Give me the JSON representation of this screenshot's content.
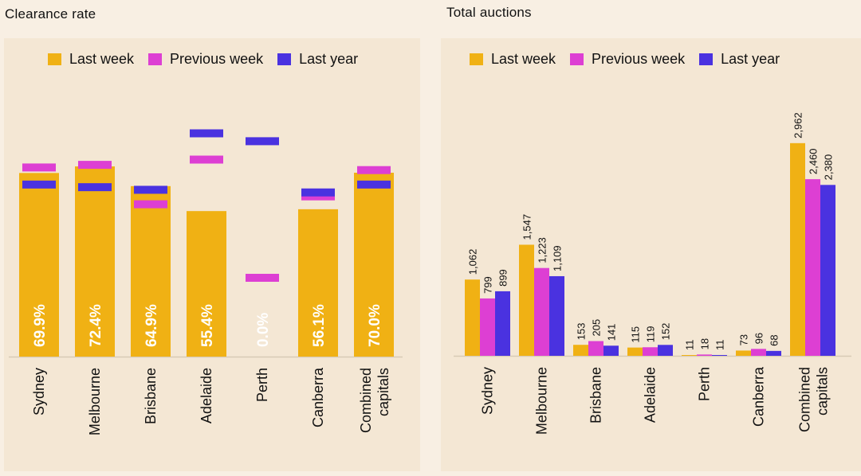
{
  "colors": {
    "last_week": "#f0b114",
    "previous_week": "#dd3fd3",
    "last_year": "#4a32e0",
    "axis": "#d8cbb6"
  },
  "chart_data": [
    {
      "type": "bar",
      "title": "Clearance rate",
      "legend": {
        "last_week": "Last week",
        "previous_week": "Previous week",
        "last_year": "Last year"
      },
      "categories": [
        "Sydney",
        "Melbourne",
        "Brisbane",
        "Adelaide",
        "Perth",
        "Canberra",
        "Combined capitals"
      ],
      "category_lines": [
        [
          "Sydney"
        ],
        [
          "Melbourne"
        ],
        [
          "Brisbane"
        ],
        [
          "Adelaide"
        ],
        [
          "Perth"
        ],
        [
          "Canberra"
        ],
        [
          "Combined",
          "capitals"
        ]
      ],
      "ylim": [
        0,
        100
      ],
      "series": [
        {
          "name": "Last week",
          "values": [
            69.9,
            72.4,
            64.9,
            55.4,
            0.0,
            56.1,
            70.0
          ],
          "labels": [
            "69.9%",
            "72.4%",
            "64.9%",
            "55.4%",
            "0.0%",
            "56.1%",
            "70.0%"
          ]
        },
        {
          "name": "Previous week",
          "values": [
            72.0,
            73.0,
            58.0,
            75.0,
            30.0,
            61.0,
            71.0
          ]
        },
        {
          "name": "Last year",
          "values": [
            65.5,
            64.5,
            63.5,
            85.0,
            82.0,
            62.5,
            65.5
          ]
        }
      ]
    },
    {
      "type": "bar",
      "title": "Total auctions",
      "legend": {
        "last_week": "Last week",
        "previous_week": "Previous week",
        "last_year": "Last year"
      },
      "categories": [
        "Sydney",
        "Melbourne",
        "Brisbane",
        "Adelaide",
        "Perth",
        "Canberra",
        "Combined capitals"
      ],
      "category_lines": [
        [
          "Sydney"
        ],
        [
          "Melbourne"
        ],
        [
          "Brisbane"
        ],
        [
          "Adelaide"
        ],
        [
          "Perth"
        ],
        [
          "Canberra"
        ],
        [
          "Combined",
          "capitals"
        ]
      ],
      "ylim": [
        0,
        3000
      ],
      "series": [
        {
          "name": "Last week",
          "values": [
            1062,
            1547,
            153,
            115,
            11,
            73,
            2962
          ],
          "labels": [
            "1,062",
            "1,547",
            "153",
            "115",
            "11",
            "73",
            "2,962"
          ]
        },
        {
          "name": "Previous week",
          "values": [
            799,
            1223,
            205,
            119,
            18,
            96,
            2460
          ],
          "labels": [
            "799",
            "1,223",
            "205",
            "119",
            "18",
            "96",
            "2,460"
          ]
        },
        {
          "name": "Last year",
          "values": [
            899,
            1109,
            141,
            152,
            11,
            68,
            2380
          ],
          "labels": [
            "899",
            "1,109",
            "141",
            "152",
            "11",
            "68",
            "2,380"
          ]
        }
      ]
    }
  ]
}
